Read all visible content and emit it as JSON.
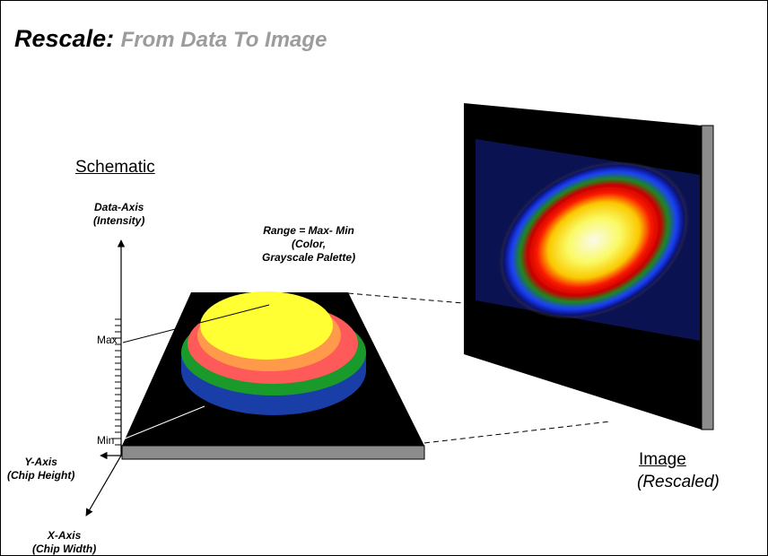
{
  "title": {
    "main": "Rescale:",
    "sub": "From Data To Image"
  },
  "schematic_label": "Schematic",
  "data_axis": {
    "line1": "Data-Axis",
    "line2": "(Intensity)"
  },
  "range_label": {
    "line1": "Range = Max- Min",
    "line2": "(Color,",
    "line3": "Grayscale Palette)"
  },
  "ticks": {
    "max": "Max",
    "min": "Min"
  },
  "y_axis": {
    "line1": "Y-Axis",
    "line2": "(Chip Height)"
  },
  "x_axis": {
    "line1": "X-Axis",
    "line2": "(Chip Width)"
  },
  "image_label": {
    "line1": "Image",
    "line2": "(Rescaled)"
  },
  "colors": {
    "chip": "#000000",
    "chip_edge": "#8c8c8c",
    "layer_blue": "#1a3ea8",
    "layer_green": "#1a9a2a",
    "layer_red": "#ff5a5a",
    "layer_orange": "#ff9a4a",
    "layer_yellow": "#ffff33",
    "title_gray": "#9c9c9c"
  }
}
